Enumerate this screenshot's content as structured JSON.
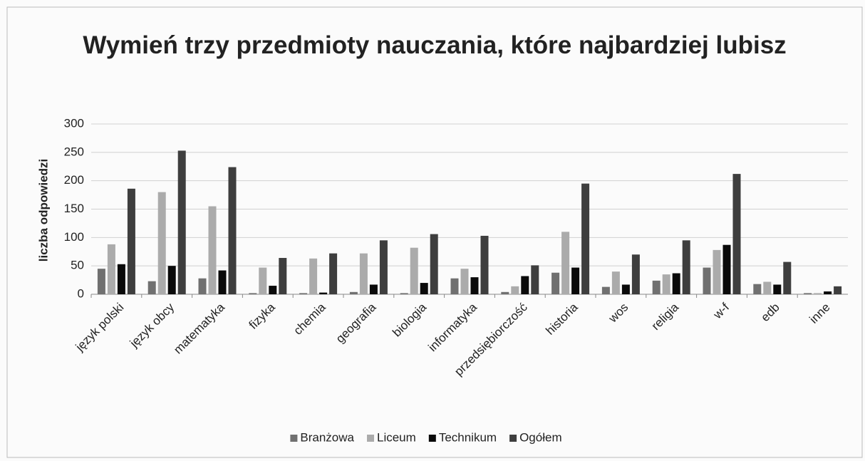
{
  "chart_data": {
    "type": "bar",
    "title": "Wymień trzy przedmioty nauczania, które najbardziej lubisz",
    "ylabel": "liczba odpowiedzi",
    "categories": [
      "język polski",
      "język obcy",
      "matematyka",
      "fizyka",
      "chemia",
      "geografia",
      "biologia",
      "informatyka",
      "przedsiębiorczość",
      "historia",
      "wos",
      "religia",
      "w-f",
      "edb",
      "inne"
    ],
    "series": [
      {
        "name": "Branżowa",
        "color": "#707070",
        "values": [
          45,
          23,
          28,
          2,
          2,
          4,
          2,
          28,
          4,
          38,
          13,
          24,
          47,
          18,
          2
        ]
      },
      {
        "name": "Liceum",
        "color": "#ababab",
        "values": [
          88,
          180,
          155,
          47,
          63,
          72,
          82,
          45,
          14,
          110,
          40,
          35,
          78,
          22,
          2
        ]
      },
      {
        "name": "Technikum",
        "color": "#0a0a0a",
        "values": [
          53,
          50,
          42,
          15,
          3,
          17,
          20,
          30,
          32,
          47,
          17,
          37,
          87,
          17,
          5
        ]
      },
      {
        "name": "Ogółem",
        "color": "#3e3e3e",
        "values": [
          186,
          253,
          224,
          64,
          72,
          95,
          106,
          103,
          51,
          195,
          70,
          95,
          212,
          57,
          14
        ]
      }
    ],
    "ylim": [
      0,
      300
    ],
    "yticks": [
      0,
      50,
      100,
      150,
      200,
      250,
      300
    ],
    "grid": true,
    "legend": "bottom"
  }
}
